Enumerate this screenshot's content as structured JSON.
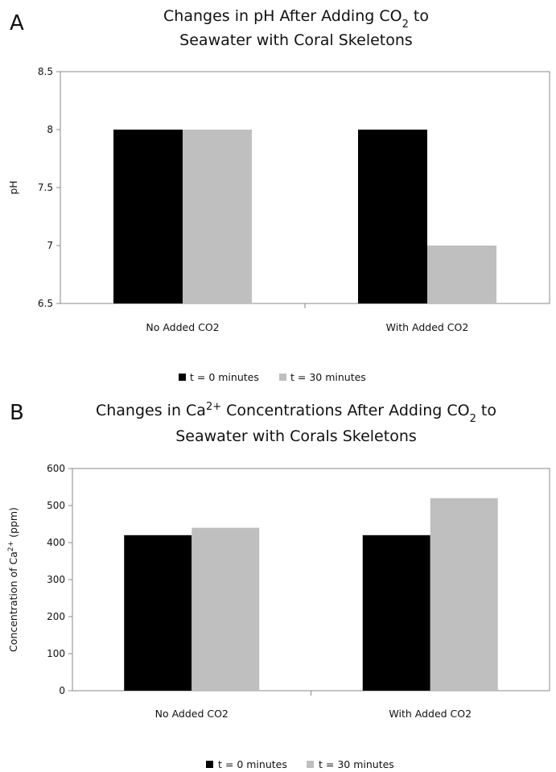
{
  "chart_data": [
    {
      "type": "bar",
      "panel": "A",
      "title": {
        "line1_pre": "Changes in pH After Adding CO",
        "line1_sub": "2",
        "line1_post": " to",
        "line2": "Seawater with Coral Skeletons"
      },
      "ylabel": {
        "main": "pH",
        "sup": "",
        "end": ""
      },
      "ylim": [
        6.5,
        8.5
      ],
      "yticks": [
        6.5,
        7,
        7.5,
        8,
        8.5
      ],
      "ytick_labels": [
        "6.5",
        "7",
        "7.5",
        "8",
        "8.5"
      ],
      "categories": [
        "No Added CO2",
        "With Added CO2"
      ],
      "series": [
        {
          "name": "t = 0 minutes",
          "color": "#000000",
          "values": [
            8,
            8
          ]
        },
        {
          "name": "t = 30 minutes",
          "color": "#bfbfbf",
          "values": [
            8,
            7
          ]
        }
      ],
      "legend_position": "bottom",
      "grid": false
    },
    {
      "type": "bar",
      "panel": "B",
      "title": {
        "line1_pre": "Changes in Ca",
        "line1_sup": "2+",
        "line1_mid": " Concentrations After Adding CO",
        "line1_sub": "2",
        "line1_post": " to",
        "line2": "Seawater with Corals Skeletons"
      },
      "ylabel": {
        "main": "Concentration of Ca",
        "sup": "2+",
        "end": " (ppm)"
      },
      "ylim": [
        0,
        600
      ],
      "yticks": [
        0,
        100,
        200,
        300,
        400,
        500,
        600
      ],
      "ytick_labels": [
        "0",
        "100",
        "200",
        "300",
        "400",
        "500",
        "600"
      ],
      "categories": [
        "No Added CO2",
        "With Added CO2"
      ],
      "series": [
        {
          "name": "t = 0 minutes",
          "color": "#000000",
          "values": [
            420,
            420
          ]
        },
        {
          "name": "t = 30 minutes",
          "color": "#bfbfbf",
          "values": [
            440,
            520
          ]
        }
      ],
      "legend_position": "bottom",
      "grid": false
    }
  ]
}
